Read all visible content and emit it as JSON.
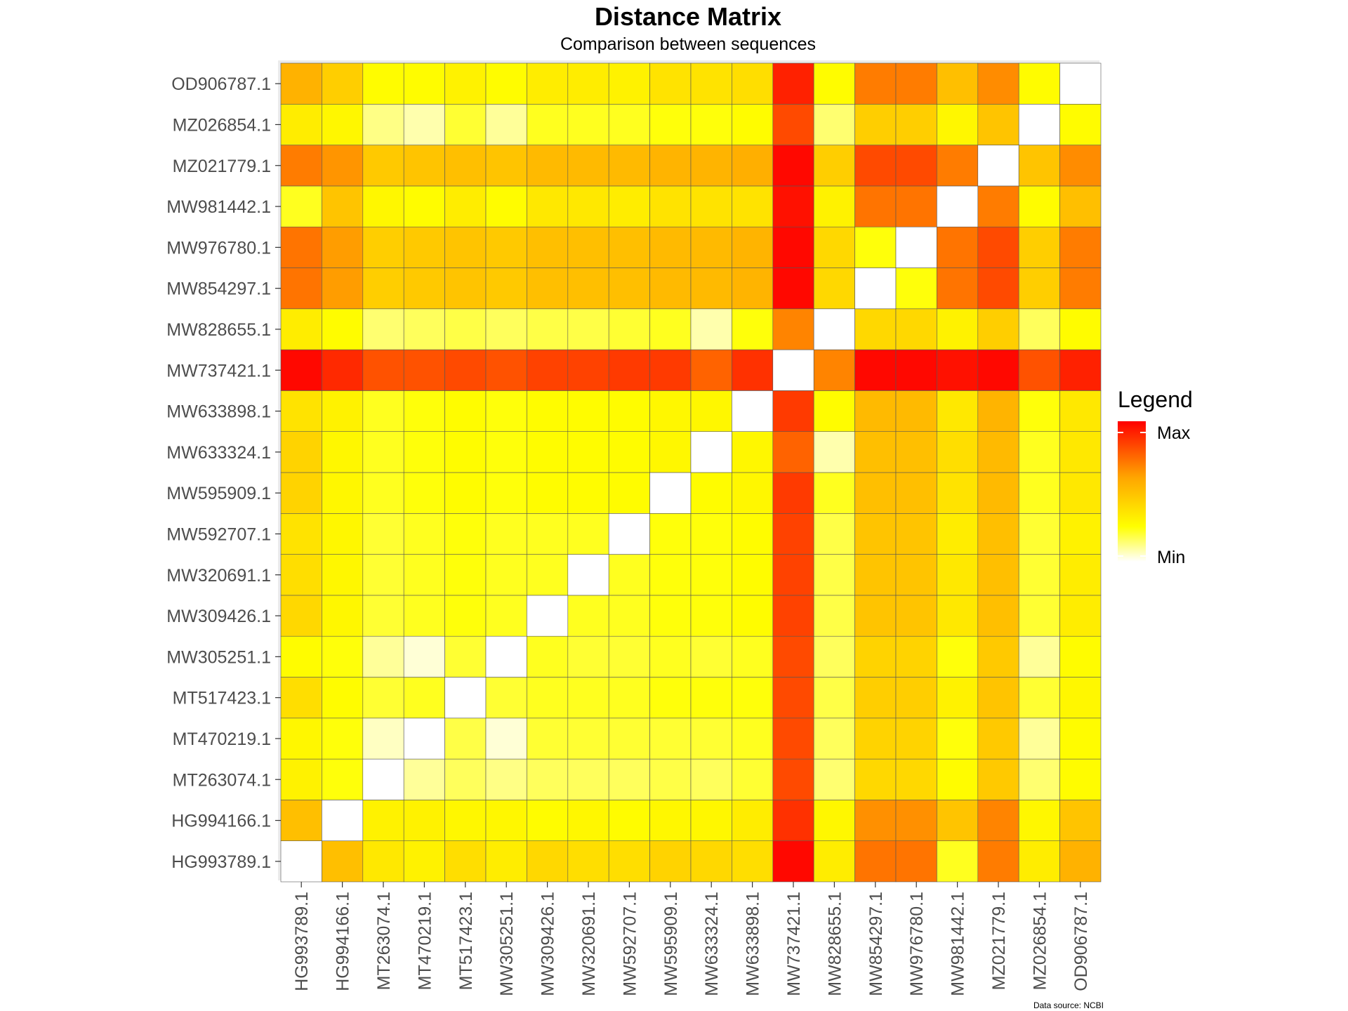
{
  "chart_data": {
    "type": "heatmap",
    "title": "Distance Matrix",
    "subtitle": "Comparison between sequences",
    "caption": "Data source: NCBI",
    "x_categories": [
      "HG993789.1",
      "HG994166.1",
      "MT263074.1",
      "MT470219.1",
      "MT517423.1",
      "MW305251.1",
      "MW309426.1",
      "MW320691.1",
      "MW592707.1",
      "MW595909.1",
      "MW633324.1",
      "MW633898.1",
      "MW737421.1",
      "MW828655.1",
      "MW854297.1",
      "MW976780.1",
      "MW981442.1",
      "MZ021779.1",
      "MZ026854.1",
      "OD906787.1"
    ],
    "y_categories": [
      "HG993789.1",
      "HG994166.1",
      "MT263074.1",
      "MT470219.1",
      "MT517423.1",
      "MW305251.1",
      "MW309426.1",
      "MW320691.1",
      "MW592707.1",
      "MW595909.1",
      "MW633324.1",
      "MW633898.1",
      "MW737421.1",
      "MW828655.1",
      "MW854297.1",
      "MW976780.1",
      "MW981442.1",
      "MZ021779.1",
      "MZ026854.1",
      "OD906787.1"
    ],
    "value_scale": "relative 0 (Min) to 1 (Max)",
    "values": [
      [
        0.0,
        0.5,
        0.34,
        0.3,
        0.38,
        0.32,
        0.4,
        0.38,
        0.38,
        0.42,
        0.4,
        0.38,
        0.98,
        0.32,
        0.72,
        0.72,
        0.22,
        0.7,
        0.32,
        0.55
      ],
      [
        0.5,
        0.0,
        0.3,
        0.3,
        0.28,
        0.28,
        0.26,
        0.28,
        0.26,
        0.28,
        0.28,
        0.32,
        0.88,
        0.28,
        0.65,
        0.65,
        0.48,
        0.68,
        0.28,
        0.48
      ],
      [
        0.3,
        0.24,
        0.0,
        0.1,
        0.16,
        0.12,
        0.16,
        0.16,
        0.16,
        0.18,
        0.16,
        0.2,
        0.82,
        0.14,
        0.4,
        0.4,
        0.26,
        0.46,
        0.14,
        0.26
      ],
      [
        0.28,
        0.24,
        0.06,
        0.0,
        0.18,
        0.04,
        0.2,
        0.2,
        0.2,
        0.2,
        0.2,
        0.22,
        0.82,
        0.16,
        0.42,
        0.42,
        0.24,
        0.46,
        0.1,
        0.26
      ],
      [
        0.38,
        0.26,
        0.2,
        0.22,
        0.0,
        0.2,
        0.22,
        0.22,
        0.22,
        0.24,
        0.24,
        0.24,
        0.82,
        0.18,
        0.44,
        0.44,
        0.3,
        0.48,
        0.2,
        0.28
      ],
      [
        0.26,
        0.24,
        0.1,
        0.04,
        0.2,
        0.0,
        0.22,
        0.2,
        0.2,
        0.22,
        0.2,
        0.22,
        0.82,
        0.16,
        0.42,
        0.42,
        0.24,
        0.46,
        0.1,
        0.26
      ],
      [
        0.4,
        0.28,
        0.2,
        0.22,
        0.24,
        0.22,
        0.0,
        0.22,
        0.22,
        0.24,
        0.24,
        0.26,
        0.84,
        0.18,
        0.48,
        0.48,
        0.34,
        0.5,
        0.2,
        0.32
      ],
      [
        0.38,
        0.28,
        0.2,
        0.22,
        0.24,
        0.22,
        0.22,
        0.0,
        0.22,
        0.24,
        0.24,
        0.26,
        0.84,
        0.18,
        0.48,
        0.48,
        0.34,
        0.5,
        0.2,
        0.32
      ],
      [
        0.36,
        0.28,
        0.2,
        0.22,
        0.24,
        0.22,
        0.22,
        0.22,
        0.0,
        0.24,
        0.24,
        0.26,
        0.84,
        0.18,
        0.48,
        0.48,
        0.32,
        0.5,
        0.2,
        0.3
      ],
      [
        0.42,
        0.28,
        0.22,
        0.24,
        0.26,
        0.24,
        0.26,
        0.26,
        0.26,
        0.0,
        0.26,
        0.28,
        0.86,
        0.22,
        0.5,
        0.5,
        0.36,
        0.52,
        0.22,
        0.34
      ],
      [
        0.42,
        0.28,
        0.22,
        0.24,
        0.26,
        0.24,
        0.26,
        0.26,
        0.26,
        0.28,
        0.0,
        0.28,
        0.76,
        0.08,
        0.5,
        0.5,
        0.38,
        0.52,
        0.22,
        0.34
      ],
      [
        0.36,
        0.3,
        0.22,
        0.24,
        0.26,
        0.24,
        0.26,
        0.26,
        0.26,
        0.28,
        0.28,
        0.0,
        0.86,
        0.26,
        0.52,
        0.52,
        0.34,
        0.54,
        0.24,
        0.34
      ],
      [
        0.98,
        0.9,
        0.8,
        0.8,
        0.82,
        0.8,
        0.84,
        0.84,
        0.86,
        0.86,
        0.76,
        0.88,
        0.0,
        0.68,
        0.98,
        0.98,
        0.96,
        0.98,
        0.8,
        0.92
      ],
      [
        0.32,
        0.26,
        0.14,
        0.16,
        0.18,
        0.16,
        0.18,
        0.18,
        0.2,
        0.22,
        0.08,
        0.24,
        0.68,
        0.0,
        0.4,
        0.4,
        0.3,
        0.44,
        0.16,
        0.26
      ],
      [
        0.72,
        0.62,
        0.44,
        0.46,
        0.48,
        0.46,
        0.5,
        0.5,
        0.5,
        0.52,
        0.52,
        0.54,
        0.98,
        0.4,
        0.0,
        0.24,
        0.72,
        0.82,
        0.44,
        0.7
      ],
      [
        0.72,
        0.62,
        0.44,
        0.46,
        0.48,
        0.46,
        0.5,
        0.5,
        0.5,
        0.52,
        0.52,
        0.54,
        0.98,
        0.4,
        0.24,
        0.0,
        0.72,
        0.82,
        0.44,
        0.7
      ],
      [
        0.22,
        0.48,
        0.28,
        0.26,
        0.32,
        0.26,
        0.34,
        0.34,
        0.32,
        0.36,
        0.36,
        0.36,
        0.96,
        0.3,
        0.72,
        0.72,
        0.0,
        0.7,
        0.26,
        0.5
      ],
      [
        0.7,
        0.64,
        0.46,
        0.48,
        0.5,
        0.48,
        0.52,
        0.52,
        0.52,
        0.54,
        0.54,
        0.56,
        0.98,
        0.44,
        0.82,
        0.82,
        0.7,
        0.0,
        0.48,
        0.66
      ],
      [
        0.32,
        0.28,
        0.12,
        0.08,
        0.2,
        0.1,
        0.22,
        0.22,
        0.22,
        0.24,
        0.24,
        0.26,
        0.82,
        0.14,
        0.44,
        0.44,
        0.28,
        0.48,
        0.0,
        0.26
      ],
      [
        0.55,
        0.44,
        0.26,
        0.26,
        0.3,
        0.26,
        0.32,
        0.32,
        0.3,
        0.36,
        0.36,
        0.38,
        0.92,
        0.26,
        0.7,
        0.7,
        0.5,
        0.66,
        0.26,
        0.0
      ]
    ],
    "legend": {
      "title": "Legend",
      "max_label": "Max",
      "min_label": "Min",
      "placement": "right",
      "colors": [
        "#ffffff",
        "#ffff00",
        "#ffa500",
        "#ff0000"
      ]
    },
    "grid": true
  }
}
